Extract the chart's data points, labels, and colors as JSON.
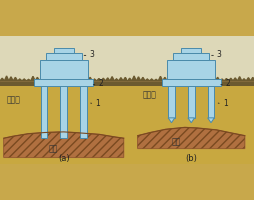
{
  "bg_top": "#e8dfc0",
  "bg_soil": "#c8a84b",
  "pile_color": "#a8d4e6",
  "pile_border": "#4a8aaa",
  "hard_color": "#b07040",
  "hatch_color": "#7a4a20",
  "label_color": "#222222",
  "fig_width": 2.55,
  "fig_height": 2.0,
  "dpi": 100,
  "label_a": "(a)",
  "label_b": "(b)",
  "text_soft_a": "软土层",
  "text_soft_b": "软土层",
  "text_hard_a": "硬层",
  "text_hard_b": "硬层",
  "num1": "1",
  "num2": "2",
  "num3": "3"
}
